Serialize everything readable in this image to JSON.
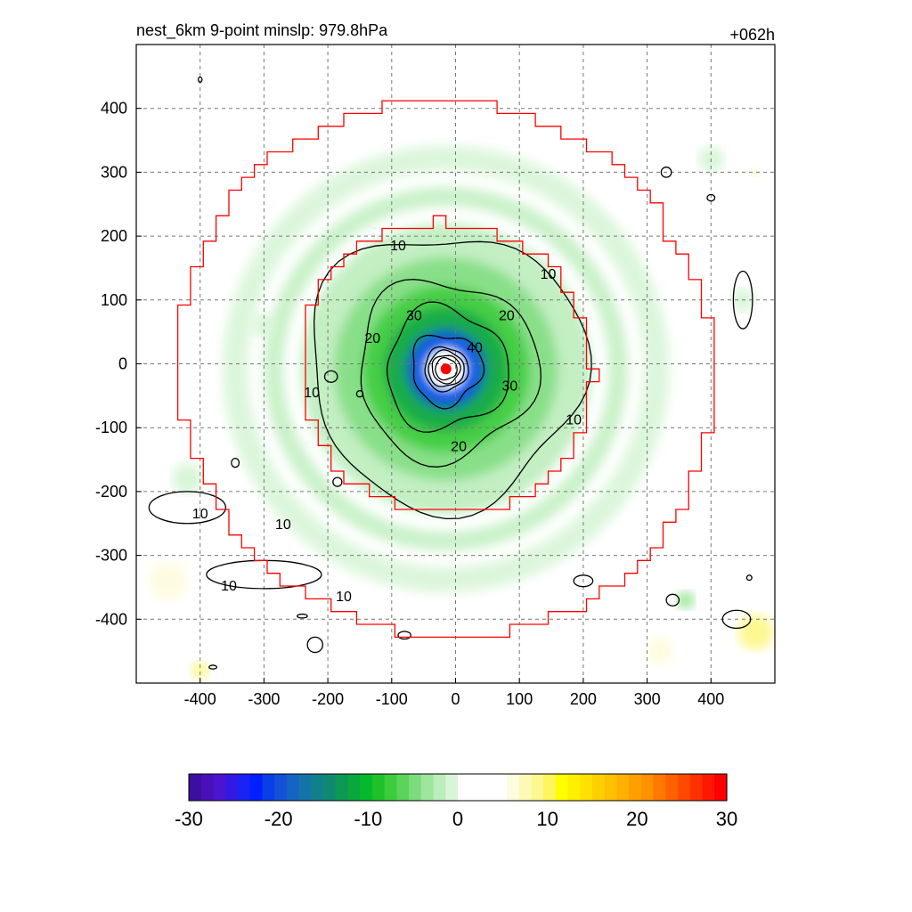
{
  "figure": {
    "title_left": "nest_6km  9-point minslp: 979.8hPa",
    "title_right": "+062h"
  },
  "chart_data": {
    "type": "heatmap",
    "xlim": [
      -500,
      500
    ],
    "ylim": [
      -500,
      500
    ],
    "x_ticks": [
      -400,
      -300,
      -200,
      -100,
      0,
      100,
      200,
      300,
      400
    ],
    "y_ticks": [
      400,
      300,
      200,
      100,
      0,
      -100,
      -200,
      -300,
      -400
    ],
    "grid": true,
    "field_range": [
      -30,
      30
    ],
    "colorbar_ticks": [
      -30,
      -20,
      -10,
      0,
      10,
      20,
      30
    ],
    "colorbar_colors": [
      "#3b0fa0",
      "#4a10b8",
      "#4a14d0",
      "#3418e4",
      "#1a22f4",
      "#0020ff",
      "#0a3ee8",
      "#1450d8",
      "#1464c4",
      "#1474a8",
      "#12808c",
      "#0f8a70",
      "#0c9856",
      "#08a83e",
      "#06b82c",
      "#1ec228",
      "#3ccc3c",
      "#5ad45a",
      "#7cdc7c",
      "#9ee59e",
      "#bcedbc",
      "#d8f5d8",
      "#ffffff",
      "#ffffff",
      "#ffffff",
      "#ffffff",
      "#fefce0",
      "#fdfab8",
      "#fdf890",
      "#fef65c",
      "#ffff00",
      "#fff000",
      "#ffe000",
      "#ffd000",
      "#ffc000",
      "#ffb000",
      "#ffa000",
      "#ff9000",
      "#ff7800",
      "#ff6000",
      "#ff4800",
      "#ff3000",
      "#ff1800",
      "#ff0000"
    ],
    "contour_levels": [
      10,
      20,
      30,
      40
    ],
    "contour_labels": [
      {
        "text": "10",
        "x": -90,
        "y": 185
      },
      {
        "text": "10",
        "x": 145,
        "y": 140
      },
      {
        "text": "10",
        "x": -225,
        "y": -45
      },
      {
        "text": "10",
        "x": 185,
        "y": -88
      },
      {
        "text": "10",
        "x": -400,
        "y": -235
      },
      {
        "text": "10",
        "x": -270,
        "y": -252
      },
      {
        "text": "10",
        "x": -355,
        "y": -348
      },
      {
        "text": "10",
        "x": -175,
        "y": -365
      },
      {
        "text": "20",
        "x": -130,
        "y": 40
      },
      {
        "text": "20",
        "x": 80,
        "y": 75
      },
      {
        "text": "20",
        "x": 5,
        "y": -130
      },
      {
        "text": "30",
        "x": -65,
        "y": 75
      },
      {
        "text": "30",
        "x": 85,
        "y": -35
      },
      {
        "text": "40",
        "x": 30,
        "y": 25
      }
    ],
    "storm_center": {
      "x": -15,
      "y": -8
    },
    "inner_ring_radius": 230,
    "outer_ring_radius": 420
  }
}
